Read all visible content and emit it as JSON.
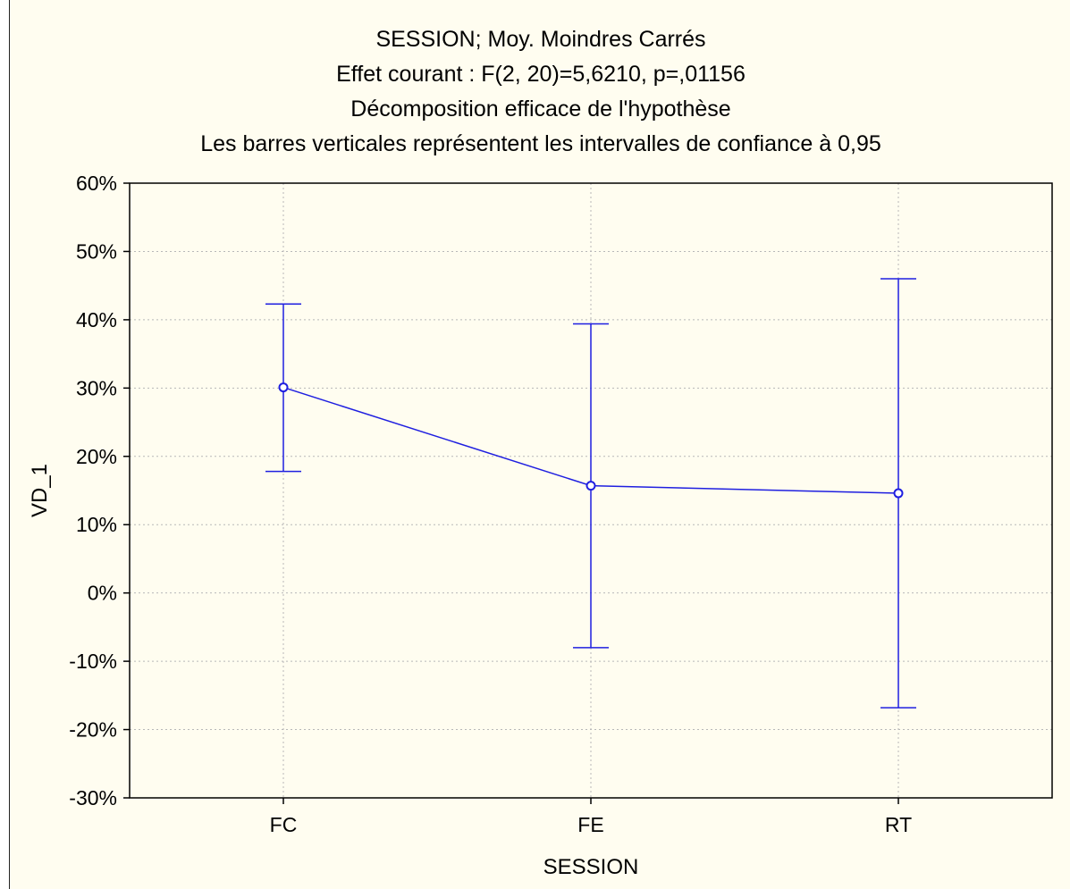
{
  "chart_data": {
    "type": "line",
    "title_lines": [
      "SESSION; Moy. Moindres Carrés",
      "Effet courant : F(2, 20)=5,6210, p=,01156",
      "Décomposition efficace de l'hypothèse",
      "Les barres verticales représentent les intervalles de confiance à 0,95"
    ],
    "xlabel": "SESSION",
    "ylabel": "VD_1",
    "categories": [
      "FC",
      "FE",
      "RT"
    ],
    "ylim": [
      -30,
      60
    ],
    "yticks": [
      60,
      50,
      40,
      30,
      20,
      10,
      0,
      -10,
      -20,
      -30
    ],
    "ytick_labels": [
      "60%",
      "50%",
      "40%",
      "30%",
      "20%",
      "10%",
      "0%",
      "-10%",
      "-20%",
      "-30%"
    ],
    "grid": true,
    "series": [
      {
        "values": [
          30.1,
          15.7,
          14.6
        ],
        "ci_lower": [
          17.8,
          -8.0,
          -16.8
        ],
        "ci_upper": [
          42.3,
          39.4,
          46.0
        ]
      }
    ],
    "colors": {
      "series": "#1f1fe0",
      "grid": "#b8b8b8",
      "background": "#fffdf0"
    }
  }
}
